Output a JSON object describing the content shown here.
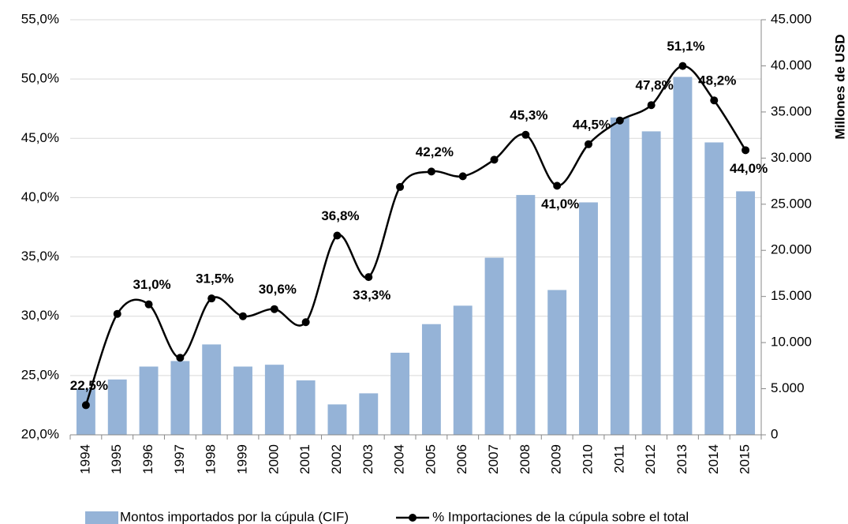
{
  "chart_data": {
    "type": "bar_line",
    "categories": [
      "1994",
      "1995",
      "1996",
      "1997",
      "1998",
      "1999",
      "2000",
      "2001",
      "2002",
      "2003",
      "2004",
      "2005",
      "2006",
      "2007",
      "2008",
      "2009",
      "2010",
      "2011",
      "2012",
      "2013",
      "2014",
      "2015"
    ],
    "series": [
      {
        "name": "Montos importados por la cúpula (CIF)",
        "type": "bar",
        "axis": "y2",
        "color": "#95b3d7",
        "values": [
          5000,
          6000,
          7400,
          8000,
          9800,
          7400,
          7600,
          5900,
          3300,
          4500,
          8900,
          12000,
          14000,
          19200,
          26000,
          15700,
          25200,
          34400,
          32900,
          38800,
          31700,
          26400
        ]
      },
      {
        "name": "% Importaciones de la cúpula sobre el total",
        "type": "line",
        "axis": "y",
        "color": "#000000",
        "values": [
          22.5,
          30.2,
          31.0,
          26.5,
          31.5,
          30.0,
          30.6,
          29.5,
          36.8,
          33.3,
          40.9,
          42.2,
          41.8,
          43.2,
          45.3,
          41.0,
          44.5,
          46.5,
          47.8,
          51.1,
          48.2,
          44.0
        ],
        "value_labels": [
          "22,5%",
          null,
          "31,0%",
          null,
          "31,5%",
          null,
          "30,6%",
          null,
          "36,8%",
          "33,3%",
          null,
          "42,2%",
          null,
          null,
          "45,3%",
          "41,0%",
          "44,5%",
          null,
          "47,8%",
          "51,1%",
          "48,2%",
          "44,0%"
        ]
      }
    ],
    "ylim": [
      20,
      55
    ],
    "yticks": [
      {
        "value": 20,
        "label": "20,0%"
      },
      {
        "value": 25,
        "label": "25,0%"
      },
      {
        "value": 30,
        "label": "30,0%"
      },
      {
        "value": 35,
        "label": "35,0%"
      },
      {
        "value": 40,
        "label": "40,0%"
      },
      {
        "value": 45,
        "label": "45,0%"
      },
      {
        "value": 50,
        "label": "50,0%"
      },
      {
        "value": 55,
        "label": "55,0%"
      }
    ],
    "y2label": "Millones de USD",
    "y2lim": [
      0,
      45000
    ],
    "y2ticks": [
      0,
      {
        "value": 5000,
        "label": "5.000"
      },
      {
        "value": 10000,
        "label": "10.000"
      },
      {
        "value": 15000,
        "label": "15.000"
      },
      {
        "value": 20000,
        "label": "20.000"
      },
      {
        "value": 25000,
        "label": "25.000"
      },
      {
        "value": 30000,
        "label": "30.000"
      },
      {
        "value": 35000,
        "label": "35.000"
      },
      {
        "value": 40000,
        "label": "40.000"
      },
      {
        "value": 45000,
        "label": "45.000"
      }
    ],
    "grid": true,
    "legend": "bottom"
  }
}
